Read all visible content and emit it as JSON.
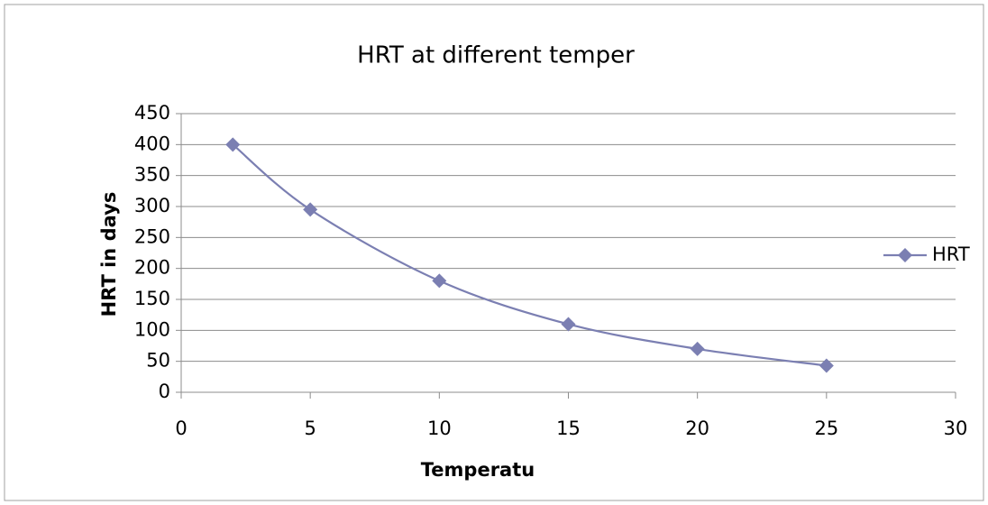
{
  "chart_data": {
    "type": "scatter-line",
    "title": "HRT at different temper",
    "x_label": "Temperatu",
    "y_label": "HRT in days",
    "x": [
      2,
      5,
      10,
      15,
      20,
      25
    ],
    "series": [
      {
        "name": "HRT",
        "color": "#7b7fb2",
        "values": [
          400,
          295,
          180,
          110,
          70,
          43
        ]
      }
    ],
    "xlim": [
      0,
      30
    ],
    "xticks": [
      0,
      5,
      10,
      15,
      20,
      25,
      30
    ],
    "ylim": [
      0,
      450
    ],
    "yticks": [
      0,
      50,
      100,
      150,
      200,
      250,
      300,
      350,
      400,
      450
    ],
    "grid": true,
    "legend": "right"
  }
}
